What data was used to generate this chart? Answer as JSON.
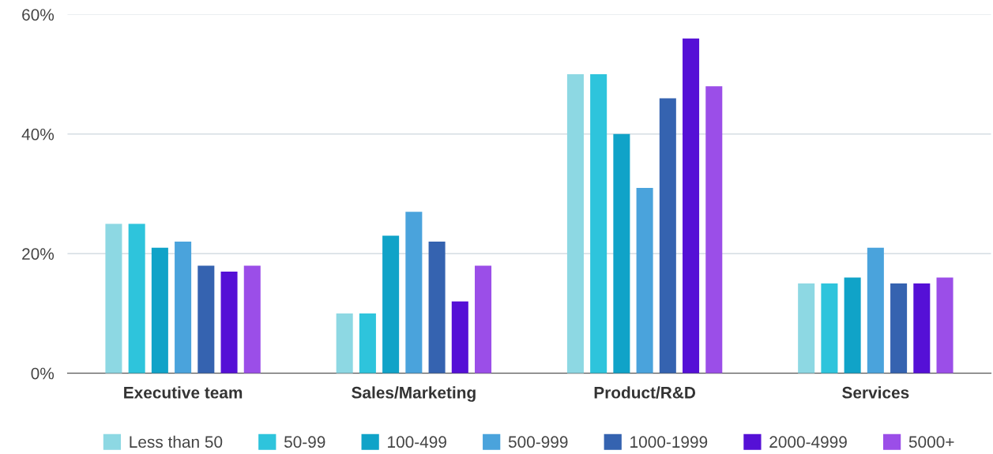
{
  "chart_data": {
    "type": "bar",
    "categories": [
      "Executive team",
      "Sales/Marketing",
      "Product/R&D",
      "Services"
    ],
    "series": [
      {
        "name": "Less than 50",
        "color": "#8dd8e3",
        "values": [
          25,
          10,
          50,
          15
        ]
      },
      {
        "name": "50-99",
        "color": "#2ec4dc",
        "values": [
          25,
          10,
          50,
          15
        ]
      },
      {
        "name": "100-499",
        "color": "#10a3c8",
        "values": [
          21,
          23,
          40,
          16
        ]
      },
      {
        "name": "500-999",
        "color": "#4aa3dc",
        "values": [
          22,
          27,
          31,
          21
        ]
      },
      {
        "name": "1000-1999",
        "color": "#3563b0",
        "values": [
          18,
          22,
          46,
          15
        ]
      },
      {
        "name": "2000-4999",
        "color": "#5510d6",
        "values": [
          17,
          12,
          56,
          15
        ]
      },
      {
        "name": "5000+",
        "color": "#9b4ee8",
        "values": [
          18,
          18,
          48,
          16
        ]
      }
    ],
    "ylim": [
      0,
      60
    ],
    "yticks": [
      {
        "value": 0,
        "label": "0%"
      },
      {
        "value": 20,
        "label": "20%"
      },
      {
        "value": 40,
        "label": "40%"
      },
      {
        "value": 60,
        "label": "60%"
      }
    ],
    "grid": "y",
    "legend": "bottom"
  }
}
